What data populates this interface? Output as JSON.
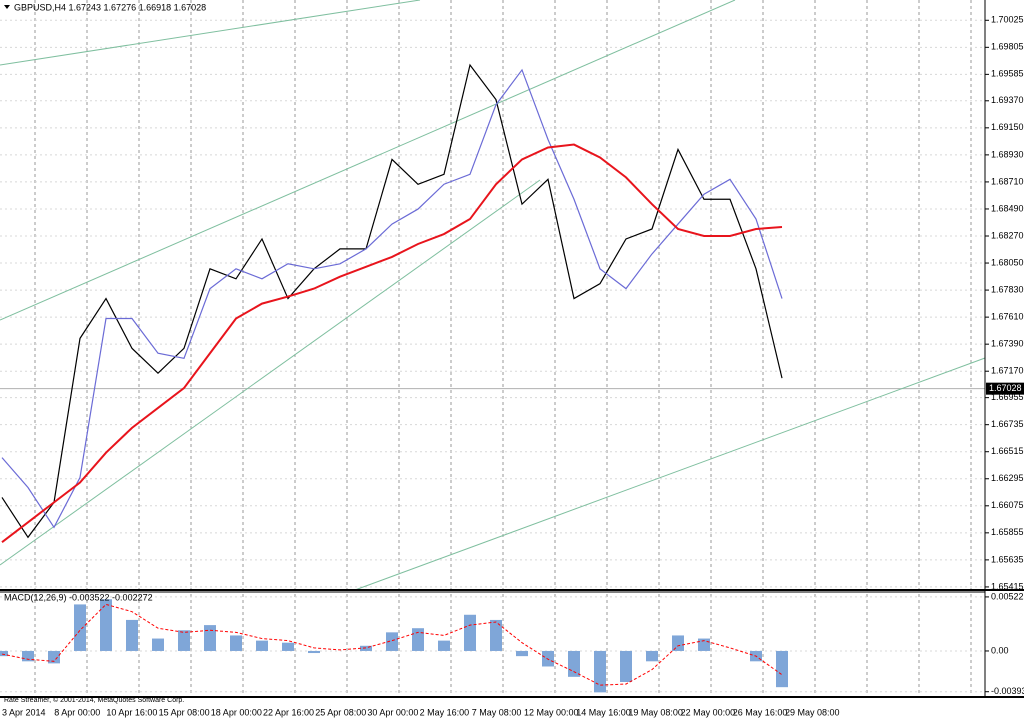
{
  "chart_data": [
    {
      "type": "line",
      "title": "GBPUSD,H4  1.67243 1.67276 1.66918 1.67028",
      "last_price": 1.67028,
      "ylim": [
        1.6539,
        1.7019
      ],
      "yticks": [
        1.70025,
        {
          "value": 1.69805,
          "label": "1.69805"
        },
        1.69585,
        {
          "value": 1.6937,
          "label": "1.69370"
        },
        {
          "value": 1.6915,
          "label": "1.69150"
        },
        {
          "value": 1.6893,
          "label": "1.68930"
        },
        {
          "value": 1.6871,
          "label": "1.68710"
        },
        {
          "value": 1.6849,
          "label": "1.68490"
        },
        {
          "value": 1.6827,
          "label": "1.68270"
        },
        {
          "value": 1.6805,
          "label": "1.68050"
        },
        {
          "value": 1.6783,
          "label": "1.67830"
        },
        {
          "value": 1.6761,
          "label": "1.67610"
        },
        {
          "value": 1.6739,
          "label": "1.67390"
        },
        {
          "value": 1.6717,
          "label": "1.67170"
        },
        1.66955,
        1.66735,
        1.66515,
        1.66295,
        1.66075,
        1.65855,
        1.65635,
        1.65415
      ],
      "x_labels": [
        "3 Apr 2014",
        "8 Apr 00:00",
        "10 Apr 16:00",
        "15 Apr 08:00",
        "18 Apr 00:00",
        "22 Apr 16:00",
        "25 Apr 08:00",
        "30 Apr 00:00",
        "2 May 16:00",
        "7 May 08:00",
        "12 May 00:00",
        "14 May 16:00",
        "19 May 08:00",
        "22 May 00:00",
        "26 May 16:00",
        "29 May 08:00"
      ],
      "series": [
        {
          "color": "#000000",
          "values": [
            1.66143,
            1.65819,
            1.66103,
            1.67437,
            1.67761,
            1.67356,
            1.67154,
            1.67356,
            1.68003,
            1.67922,
            1.68246,
            1.67761,
            1.68003,
            1.68165,
            1.68165,
            1.68893,
            1.68691,
            1.68772,
            1.69661,
            1.69379,
            1.68529,
            1.68731,
            1.67761,
            1.67882,
            1.68246,
            1.68327,
            1.68974,
            1.68569,
            1.68569,
            1.68003,
            1.67114
          ]
        },
        {
          "color": "#6b6bd6",
          "values": [
            1.66467,
            1.66224,
            1.659,
            1.66305,
            1.67599,
            1.67599,
            1.67316,
            1.67275,
            1.67842,
            1.68003,
            1.67922,
            1.68044,
            1.68003,
            1.68044,
            1.68165,
            1.68367,
            1.68489,
            1.68691,
            1.68772,
            1.69338,
            1.69621,
            1.69055,
            1.68569,
            1.68003,
            1.67842,
            1.68124,
            1.68367,
            1.6861,
            1.68731,
            1.68408,
            1.67761
          ]
        },
        {
          "color": "#e8141c",
          "values": [
            1.65779,
            1.65941,
            1.66103,
            1.66264,
            1.66507,
            1.66709,
            1.66871,
            1.67033,
            1.67316,
            1.67599,
            1.6772,
            1.67777,
            1.67842,
            1.67939,
            1.68019,
            1.681,
            1.68205,
            1.68286,
            1.68408,
            1.68691,
            1.68893,
            1.6899,
            1.69014,
            1.68909,
            1.68747,
            1.68529,
            1.68327,
            1.6827,
            1.6827,
            1.68327,
            1.68343
          ]
        }
      ]
    },
    {
      "type": "bar",
      "title": "MACD(12,26,9) -0.003522 -0.002272",
      "ylim": [
        -0.00445,
        0.0057
      ],
      "yticks": [
        0.005225,
        {
          "value": 0,
          "label": "0.00"
        },
        -0.003938
      ],
      "color": "#7fa6d8",
      "values": [
        -0.0005,
        -0.001,
        -0.0012,
        0.0045,
        0.005,
        0.003,
        0.0012,
        0.002,
        0.0025,
        0.0015,
        0.001,
        0.0008,
        -0.0002,
        0,
        0.0005,
        0.0018,
        0.0022,
        0.001,
        0.0035,
        0.003,
        -0.0005,
        -0.0015,
        -0.0025,
        -0.004,
        -0.003,
        -0.001,
        0.0015,
        0.0012,
        0,
        -0.001,
        -0.0035
      ],
      "signal": {
        "color": "#ff0000",
        "values": [
          -0.0003,
          -0.0008,
          -0.001,
          0.002,
          0.0045,
          0.0038,
          0.0022,
          0.0018,
          0.002,
          0.0018,
          0.0012,
          0.001,
          0.0003,
          0.0001,
          0.0003,
          0.001,
          0.0018,
          0.0015,
          0.0025,
          0.0028,
          0.0008,
          -0.0008,
          -0.002,
          -0.0033,
          -0.0032,
          -0.0018,
          0.0005,
          0.001,
          0.0003,
          -0.0005,
          -0.0023
        ]
      },
      "footer": "Rate Streamer, © 2001-2014, MetaQuotes Software Corp."
    }
  ]
}
